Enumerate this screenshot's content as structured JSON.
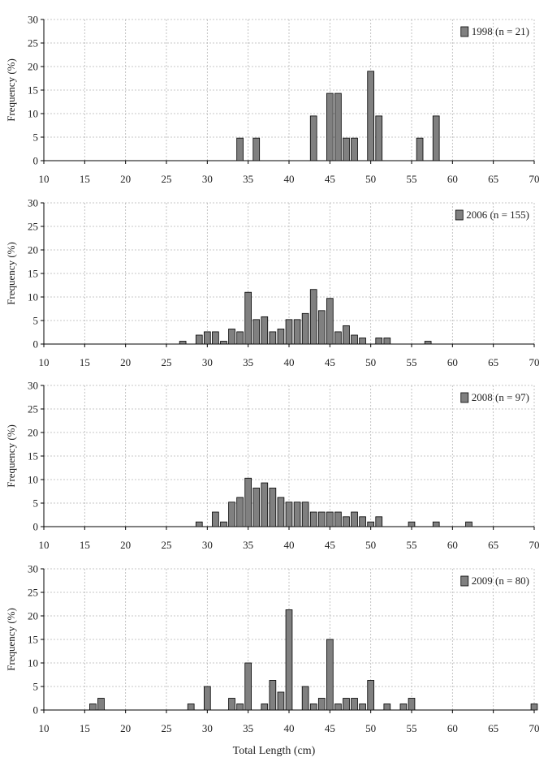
{
  "figure": {
    "xlabel": "Total Length (cm)"
  },
  "chart_data": [
    {
      "type": "bar",
      "legend": "1998 (n = 21)",
      "ylabel": "Frequency (%)",
      "xlim": [
        10,
        70
      ],
      "ylim": [
        0,
        30
      ],
      "xticks": [
        10,
        15,
        20,
        25,
        30,
        35,
        40,
        45,
        50,
        55,
        60,
        65,
        70
      ],
      "yticks": [
        0,
        5,
        10,
        15,
        20,
        25,
        30
      ],
      "grid": true,
      "legend_position": "top-right",
      "bar_color": "#808080",
      "x": [
        34,
        36,
        43,
        45,
        46,
        47,
        48,
        50,
        51,
        56,
        58
      ],
      "values": [
        4.8,
        4.8,
        9.5,
        14.3,
        14.3,
        4.8,
        4.8,
        19.0,
        9.5,
        4.8,
        9.5
      ]
    },
    {
      "type": "bar",
      "legend": "2006 (n = 155)",
      "ylabel": "Frequency (%)",
      "xlim": [
        10,
        70
      ],
      "ylim": [
        0,
        30
      ],
      "xticks": [
        10,
        15,
        20,
        25,
        30,
        35,
        40,
        45,
        50,
        55,
        60,
        65,
        70
      ],
      "yticks": [
        0,
        5,
        10,
        15,
        20,
        25,
        30
      ],
      "grid": true,
      "legend_position": "top-right",
      "bar_color": "#808080",
      "x": [
        27,
        29,
        30,
        31,
        32,
        33,
        34,
        35,
        36,
        37,
        38,
        39,
        40,
        41,
        42,
        43,
        44,
        45,
        46,
        47,
        48,
        49,
        51,
        52,
        57
      ],
      "values": [
        0.6,
        1.9,
        2.6,
        2.6,
        0.6,
        3.2,
        2.6,
        11.0,
        5.2,
        5.8,
        2.6,
        3.2,
        5.2,
        5.2,
        6.5,
        11.6,
        7.1,
        9.7,
        2.6,
        3.9,
        1.9,
        1.3,
        1.3,
        1.3,
        0.6
      ]
    },
    {
      "type": "bar",
      "legend": "2008 (n = 97)",
      "ylabel": "Frequency (%)",
      "xlim": [
        10,
        70
      ],
      "ylim": [
        0,
        30
      ],
      "xticks": [
        10,
        15,
        20,
        25,
        30,
        35,
        40,
        45,
        50,
        55,
        60,
        65,
        70
      ],
      "yticks": [
        0,
        5,
        10,
        15,
        20,
        25,
        30
      ],
      "grid": true,
      "legend_position": "top-right",
      "bar_color": "#808080",
      "x": [
        29,
        31,
        32,
        33,
        34,
        35,
        36,
        37,
        38,
        39,
        40,
        41,
        42,
        43,
        44,
        45,
        46,
        47,
        48,
        49,
        50,
        51,
        55,
        58,
        62
      ],
      "values": [
        1.0,
        3.1,
        1.0,
        5.2,
        6.2,
        10.3,
        8.2,
        9.3,
        8.2,
        6.2,
        5.2,
        5.2,
        5.2,
        3.1,
        3.1,
        3.1,
        3.1,
        2.1,
        3.1,
        2.1,
        1.0,
        2.1,
        1.0,
        1.0,
        1.0
      ]
    },
    {
      "type": "bar",
      "legend": "2009 (n = 80)",
      "ylabel": "Frequency (%)",
      "xlim": [
        10,
        70
      ],
      "ylim": [
        0,
        30
      ],
      "xticks": [
        10,
        15,
        20,
        25,
        30,
        35,
        40,
        45,
        50,
        55,
        60,
        65,
        70
      ],
      "yticks": [
        0,
        5,
        10,
        15,
        20,
        25,
        30
      ],
      "grid": true,
      "legend_position": "top-right",
      "bar_color": "#808080",
      "x": [
        16,
        17,
        28,
        30,
        33,
        34,
        35,
        37,
        38,
        39,
        40,
        42,
        43,
        44,
        45,
        46,
        47,
        48,
        49,
        50,
        52,
        54,
        55,
        70
      ],
      "values": [
        1.3,
        2.5,
        1.3,
        5.0,
        2.5,
        1.3,
        10.0,
        1.3,
        6.3,
        3.8,
        21.3,
        5.0,
        1.3,
        2.5,
        15.0,
        1.3,
        2.5,
        2.5,
        1.3,
        6.3,
        1.3,
        1.3,
        2.5,
        1.3
      ]
    }
  ]
}
